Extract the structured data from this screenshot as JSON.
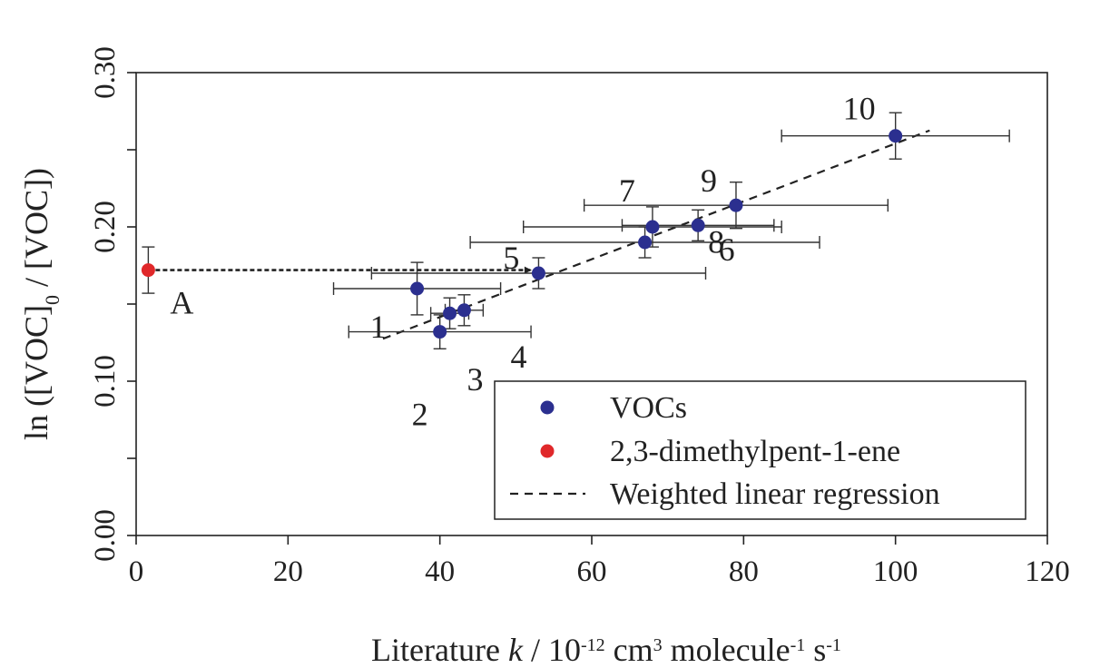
{
  "chart_data": {
    "type": "scatter",
    "title": "",
    "xlabel": {
      "pre": "Literature ",
      "k": "k",
      "mid1": " / 10",
      "exp1": "-12",
      "mid2": " cm",
      "exp2": "3",
      "mid3": " molecule",
      "exp3": "-1",
      "mid4": " s",
      "exp4": "-1"
    },
    "ylabel": {
      "pre": "ln ([VOC]",
      "sub": "0",
      "post": " / [VOC])"
    },
    "xlim": [
      0,
      120
    ],
    "ylim": [
      0.0,
      0.3
    ],
    "xticks": [
      "0",
      "20",
      "40",
      "60",
      "80",
      "100",
      "120"
    ],
    "yticks": [
      "0.00",
      "0.10",
      "0.20",
      "0.30"
    ],
    "minor_yticks": [
      0.05,
      0.15,
      0.25
    ],
    "grid": false,
    "legend_position": "bottom-right",
    "colors": {
      "vocs": "#2b2f8f",
      "target": "#e0282a",
      "line": "#222222"
    },
    "series": [
      {
        "name": "VOCs",
        "points": [
          {
            "label": "1",
            "x": 37,
            "y": 0.16,
            "xerr": 11,
            "yerr": 0.017
          },
          {
            "label": "2",
            "x": 40,
            "y": 0.132,
            "xerr": 12,
            "yerr": 0.011
          },
          {
            "label": "3",
            "x": 41.3,
            "y": 0.144,
            "xerr": 2.5,
            "yerr": 0.01
          },
          {
            "label": "4",
            "x": 43.2,
            "y": 0.146,
            "xerr": 2.5,
            "yerr": 0.01
          },
          {
            "label": "5",
            "x": 53,
            "y": 0.17,
            "xerr": 22,
            "yerr": 0.01
          },
          {
            "label": "6",
            "x": 67,
            "y": 0.19,
            "xerr": 23,
            "yerr": 0.01
          },
          {
            "label": "7",
            "x": 68,
            "y": 0.2,
            "xerr": 17,
            "yerr": 0.013
          },
          {
            "label": "8",
            "x": 74,
            "y": 0.201,
            "xerr": 10,
            "yerr": 0.01
          },
          {
            "label": "9",
            "x": 79,
            "y": 0.214,
            "xerr": 20,
            "yerr": 0.015
          },
          {
            "label": "10",
            "x": 100,
            "y": 0.259,
            "xerr": 15,
            "yerr": 0.015
          }
        ]
      },
      {
        "name": "2,3-dimethylpent-1-ene",
        "points": [
          {
            "label": "A",
            "x": 1.6,
            "y": 0.172,
            "xerr": 0,
            "yerr": 0.015
          }
        ]
      }
    ],
    "regression": {
      "name": "Weighted linear regression",
      "x1": 32.5,
      "y1": 0.1275,
      "x2": 104.5,
      "y2": 0.2625
    },
    "projection_arrow": {
      "from_x": 1.6,
      "to_x": 52,
      "y": 0.172
    }
  }
}
